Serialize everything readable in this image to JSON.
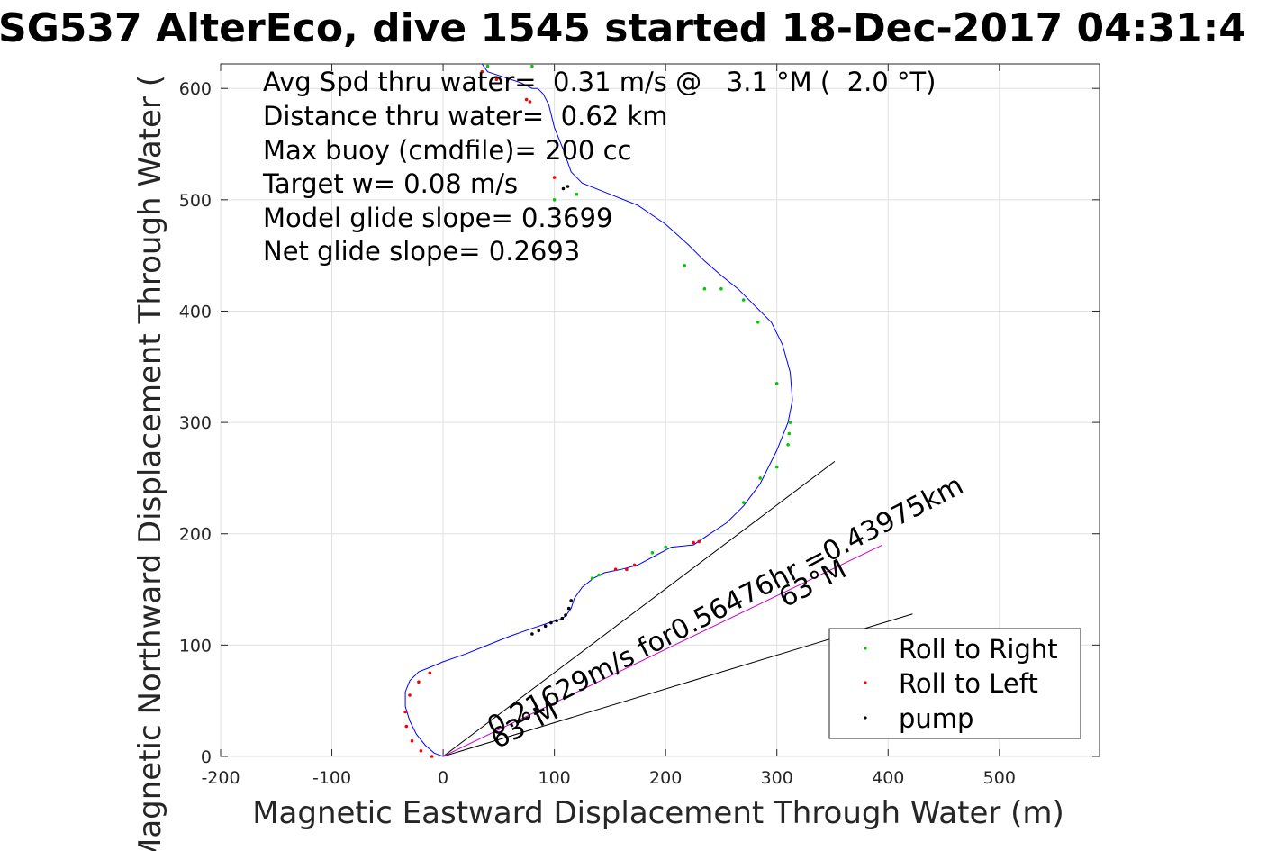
{
  "chart_data": {
    "type": "scatter",
    "title": "SG537 AlterEco, dive 1545 started 18-Dec-2017 04:31:4",
    "xlabel": "Magnetic Eastward Displacement Through Water (m)",
    "ylabel": "Magnetic Northward Displacement Through Water (",
    "xlim": [
      -200,
      590
    ],
    "ylim": [
      0,
      622
    ],
    "x_ticks": [
      "-200",
      "-100",
      "0",
      "100",
      "200",
      "300",
      "400",
      "500"
    ],
    "y_ticks": [
      "0",
      "100",
      "200",
      "300",
      "400",
      "500",
      "600"
    ],
    "grid": true,
    "legend_position": "bottom-right",
    "annotations": [
      "Avg Spd thru water=  0.31 m/s @   3.1 °M (  2.0 °T)",
      "Distance thru water=  0.62 km",
      "Max buoy (cmdfile)= 200 cc",
      "Target w= 0.08 m/s",
      "Model glide slope= 0.3699",
      "Net glide slope= 0.2693"
    ],
    "current_label": "0.21629m/s for0.56476hr =0.43975km",
    "heading_label_1": "63°M",
    "heading_label_2": "63°M",
    "colors": {
      "track": "#0000ff",
      "roll_right": "#00cc00",
      "roll_left": "#ff0000",
      "pump": "#000000",
      "current": "#cc00cc"
    },
    "series": [
      {
        "name": "Roll to Right",
        "points": [
          [
            134,
            160
          ],
          [
            140,
            163
          ],
          [
            188,
            183
          ],
          [
            200,
            188
          ],
          [
            217,
            441
          ],
          [
            235,
            420
          ],
          [
            250,
            420
          ],
          [
            270,
            410
          ],
          [
            283,
            390
          ],
          [
            300,
            335
          ],
          [
            311,
            290
          ],
          [
            312,
            300
          ],
          [
            310,
            280
          ],
          [
            300,
            260
          ],
          [
            285,
            250
          ],
          [
            270,
            228
          ],
          [
            100,
            500
          ],
          [
            120,
            505
          ],
          [
            80,
            620
          ],
          [
            40,
            620
          ]
        ]
      },
      {
        "name": "Roll to Left",
        "points": [
          [
            -10,
            0
          ],
          [
            -20,
            5
          ],
          [
            -28,
            14
          ],
          [
            -33,
            27
          ],
          [
            -34,
            40
          ],
          [
            -30,
            55
          ],
          [
            -22,
            67
          ],
          [
            -12,
            75
          ],
          [
            78,
            588
          ],
          [
            75,
            590
          ],
          [
            100,
            520
          ],
          [
            155,
            168
          ],
          [
            165,
            168
          ],
          [
            172,
            172
          ],
          [
            225,
            192
          ],
          [
            230,
            193
          ],
          [
            35,
            615
          ],
          [
            48,
            608
          ]
        ]
      },
      {
        "name": "pump",
        "points": [
          [
            80,
            110
          ],
          [
            86,
            113
          ],
          [
            92,
            117
          ],
          [
            97,
            120
          ],
          [
            102,
            122
          ],
          [
            107,
            124
          ],
          [
            110,
            127
          ],
          [
            113,
            133
          ],
          [
            115,
            140
          ],
          [
            108,
            510
          ],
          [
            112,
            512
          ]
        ]
      }
    ],
    "track": {
      "x": [
        0,
        -8,
        -16,
        -24,
        -30,
        -34,
        -34,
        -30,
        -22,
        -12,
        0,
        20,
        40,
        60,
        80,
        95,
        105,
        110,
        115,
        118,
        125,
        135,
        145,
        160,
        175,
        190,
        205,
        225,
        240,
        255,
        270,
        285,
        300,
        310,
        314,
        312,
        305,
        295,
        280,
        265,
        250,
        235,
        220,
        200,
        175,
        150,
        125,
        115,
        108,
        100,
        95,
        90,
        85,
        80,
        70,
        55,
        40,
        35
      ],
      "y": [
        0,
        3,
        10,
        20,
        32,
        45,
        58,
        68,
        76,
        80,
        85,
        92,
        100,
        108,
        115,
        120,
        123,
        126,
        133,
        142,
        152,
        160,
        165,
        168,
        172,
        180,
        188,
        190,
        200,
        210,
        225,
        245,
        275,
        300,
        320,
        345,
        370,
        390,
        405,
        420,
        432,
        445,
        460,
        478,
        495,
        505,
        515,
        525,
        545,
        565,
        585,
        595,
        600,
        600,
        605,
        610,
        615,
        622
      ]
    },
    "lines": {
      "current": {
        "from": [
          0,
          0
        ],
        "to": [
          395,
          190
        ]
      },
      "heading_a": {
        "from": [
          0,
          0
        ],
        "to": [
          352,
          265
        ]
      },
      "heading_b": {
        "from": [
          0,
          0
        ],
        "to": [
          422,
          128
        ]
      }
    }
  }
}
